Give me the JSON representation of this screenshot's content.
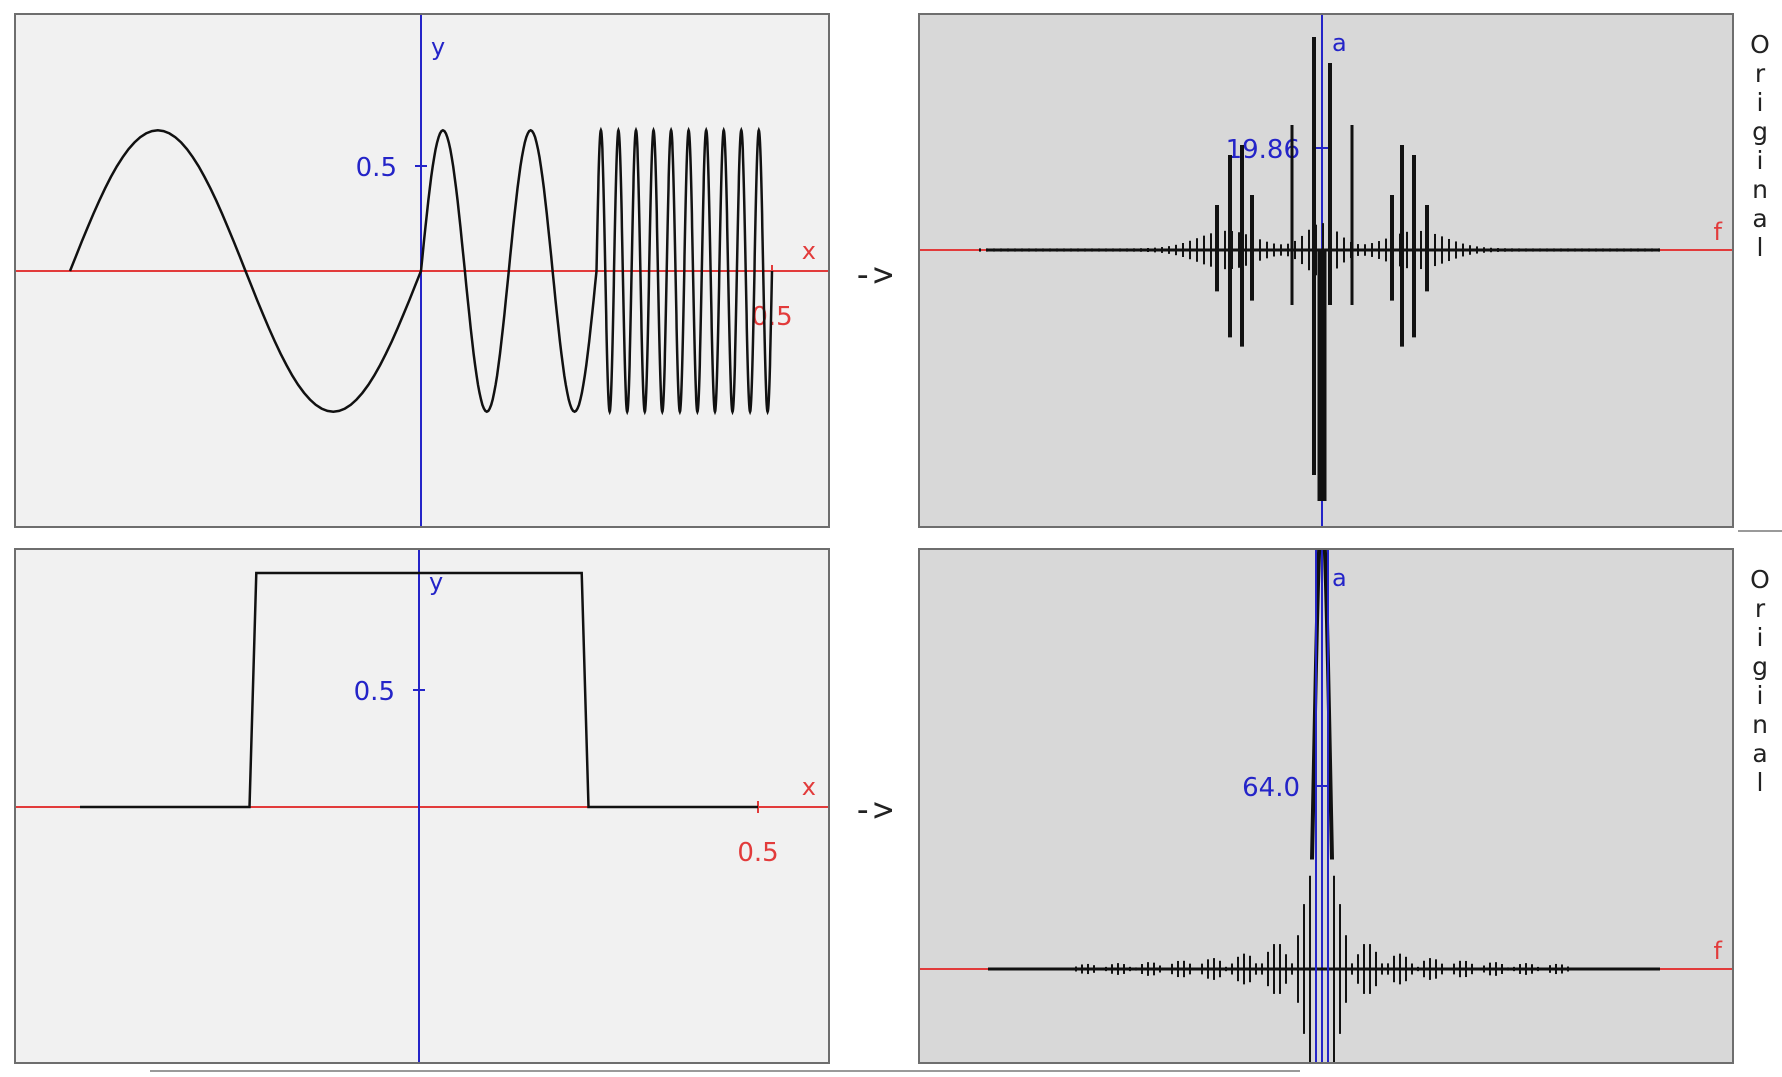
{
  "arrow_text": "->",
  "side_label": "Original",
  "colors": {
    "x_axis": "#e23b3b",
    "y_axis": "#2424c8",
    "curve": "#111111",
    "time_bg": "#f1f1f1",
    "freq_bg": "#d8d8d8"
  },
  "chart_data": [
    {
      "type": "line",
      "domain": "time",
      "xlabel": "x",
      "ylabel": "y",
      "xlim": [
        -0.6,
        0.62
      ],
      "ylim": [
        -0.67,
        0.69
      ],
      "x_tick": {
        "value": 0.5,
        "label": "0.5"
      },
      "y_tick": {
        "value": 0.5,
        "label": "0.5"
      },
      "signal": "sine of increasing frequency: one slow period on [-0.5, 0], two faster periods on [0, 0.25], ten fast periods on [0.25, 0.5]",
      "segments": [
        {
          "x": [
            -0.5,
            0.0
          ],
          "cycles": 1
        },
        {
          "x": [
            0.0,
            0.25
          ],
          "cycles": 2
        },
        {
          "x": [
            0.25,
            0.5
          ],
          "cycles": 10
        }
      ],
      "amplitude": 0.67
    },
    {
      "type": "line",
      "domain": "frequency",
      "xlabel": "f",
      "ylabel": "a",
      "y_tick": {
        "value": 19.86,
        "label": "19.86"
      },
      "ylim": [
        -46,
        40
      ],
      "signal": "spectrum with clusters at low, medium and high frequency"
    },
    {
      "type": "line",
      "domain": "time",
      "xlabel": "x",
      "ylabel": "y",
      "xlim": [
        -0.6,
        0.62
      ],
      "ylim": [
        -0.77,
        0.69
      ],
      "x_tick": {
        "value": 0.5,
        "label": "0.5"
      },
      "y_tick": {
        "value": 0.5,
        "label": "0.5"
      },
      "signal": "rectangular pulse",
      "x": [
        -0.5,
        -0.25,
        -0.24,
        0.24,
        0.25,
        0.5
      ],
      "y": [
        0,
        0,
        1,
        1,
        0,
        0
      ]
    },
    {
      "type": "line",
      "domain": "frequency",
      "xlabel": "f",
      "ylabel": "a",
      "y_tick": {
        "value": 64.0,
        "label": "64.0"
      },
      "ylim": [
        -25,
        165
      ],
      "signal": "sinc-like spectrum with a single tall central peak"
    }
  ]
}
